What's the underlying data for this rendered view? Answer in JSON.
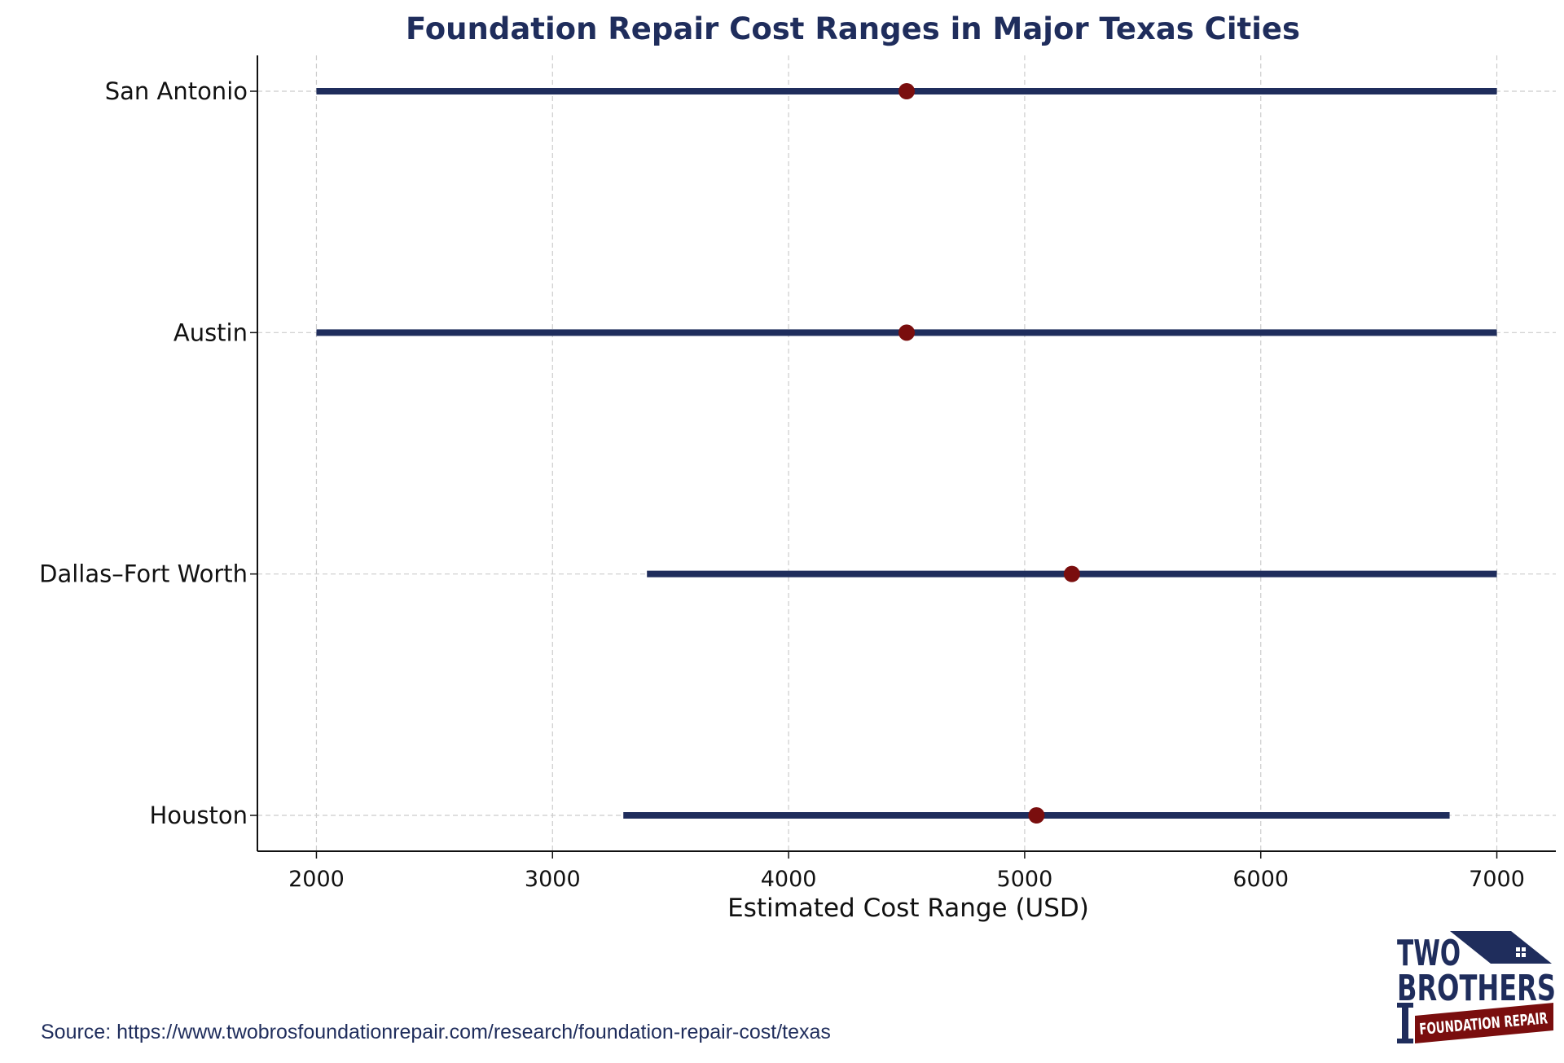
{
  "chart_data": {
    "type": "range",
    "title": "Foundation Repair Cost Ranges in Major Texas Cities",
    "xlabel": "Estimated Cost Range (USD)",
    "ylabel": "",
    "xlim": [
      1750,
      7250
    ],
    "xticks": [
      2000,
      3000,
      4000,
      5000,
      6000,
      7000
    ],
    "grid": true,
    "categories": [
      "San Antonio",
      "Austin",
      "Dallas–Fort Worth",
      "Houston"
    ],
    "series": [
      {
        "category": "San Antonio",
        "low": 2000,
        "high": 7000,
        "mid": 4500
      },
      {
        "category": "Austin",
        "low": 2000,
        "high": 7000,
        "mid": 4500
      },
      {
        "category": "Dallas–Fort Worth",
        "low": 3400,
        "high": 7000,
        "mid": 5200
      },
      {
        "category": "Houston",
        "low": 3300,
        "high": 6800,
        "mid": 5050
      }
    ],
    "colors": {
      "range_line": "#1f2d5c",
      "midpoint": "#7a0e0e",
      "title": "#1f2d5c",
      "grid": "#cccccc"
    }
  },
  "footer": {
    "source": "Source: https://www.twobrosfoundationrepair.com/research/foundation-repair-cost/texas"
  },
  "logo": {
    "line1": "TWO",
    "line2": "BROTHERS",
    "line3": "FOUNDATION REPAIR"
  }
}
